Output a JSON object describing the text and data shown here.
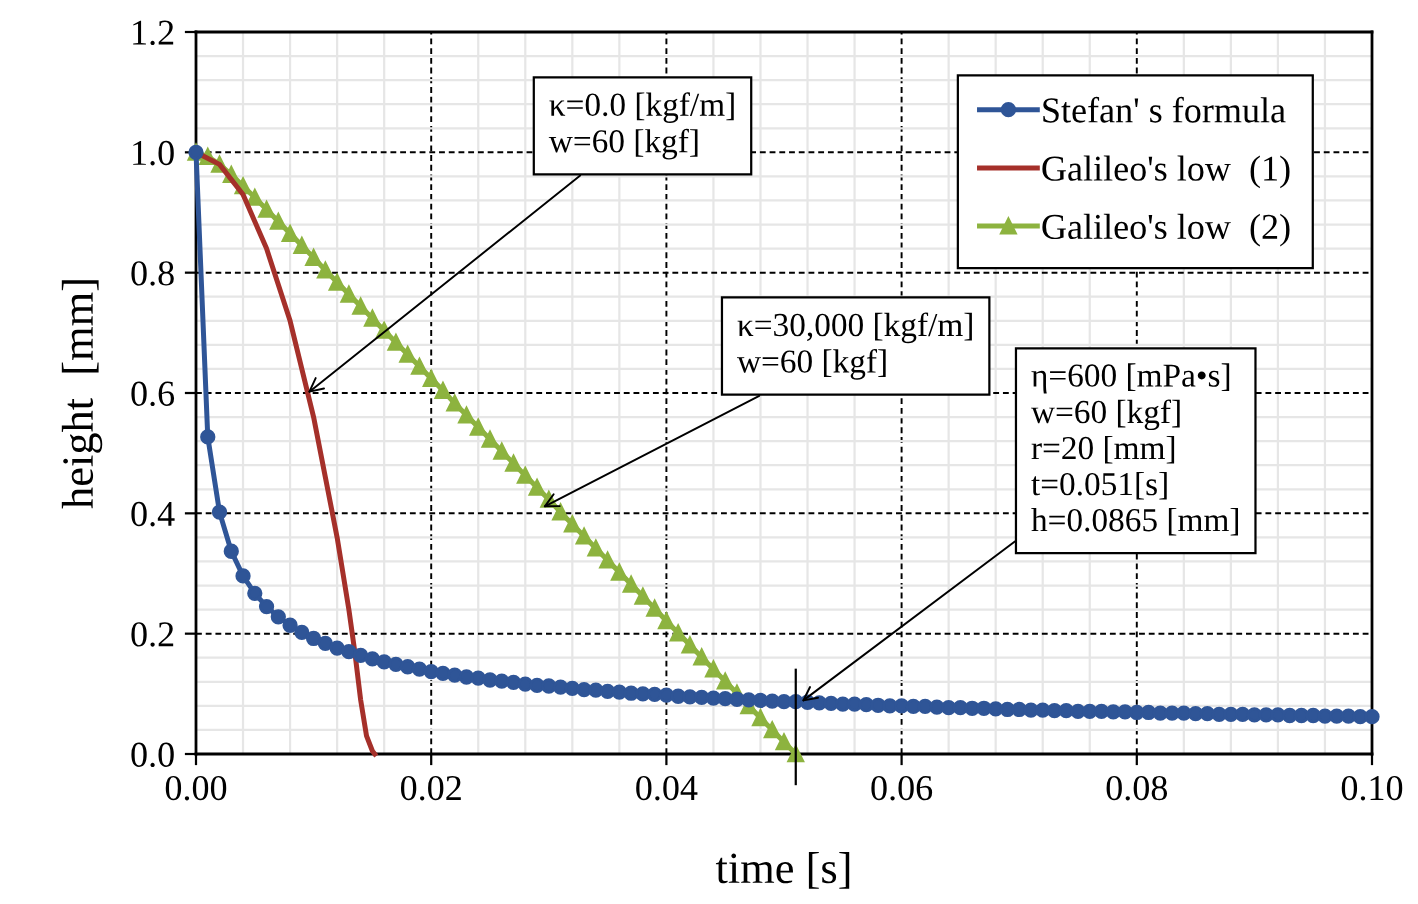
{
  "chart_data": {
    "type": "line",
    "xlabel": "time [s]",
    "ylabel": "height  [mm]",
    "xlim": [
      0,
      0.1
    ],
    "ylim": [
      0,
      1.2
    ],
    "xticks": [
      {
        "value": 0,
        "label": "0.00"
      },
      {
        "value": 0.02,
        "label": "0.02"
      },
      {
        "value": 0.04,
        "label": "0.04"
      },
      {
        "value": 0.06,
        "label": "0.06"
      },
      {
        "value": 0.08,
        "label": "0.08"
      },
      {
        "value": 0.1,
        "label": "0.10"
      }
    ],
    "yticks": [
      {
        "value": 0,
        "label": "0.0"
      },
      {
        "value": 0.2,
        "label": "0.2"
      },
      {
        "value": 0.4,
        "label": "0.4"
      },
      {
        "value": 0.6,
        "label": "0.6"
      },
      {
        "value": 0.8,
        "label": "0.8"
      },
      {
        "value": 1.0,
        "label": "1.0"
      },
      {
        "value": 1.2,
        "label": "1.2"
      }
    ],
    "grid": true,
    "legend": "top right",
    "series": [
      {
        "name": "Stefan' s formula",
        "color": "#2f5597",
        "marker": "circle",
        "x": [
          0,
          0.001,
          0.002,
          0.003,
          0.004,
          0.005,
          0.006,
          0.007,
          0.008,
          0.009,
          0.01,
          0.011,
          0.012,
          0.013,
          0.014,
          0.015,
          0.016,
          0.017,
          0.018,
          0.019,
          0.02,
          0.021,
          0.022,
          0.023,
          0.024,
          0.025,
          0.026,
          0.027,
          0.028,
          0.029,
          0.03,
          0.031,
          0.032,
          0.033,
          0.034,
          0.035,
          0.036,
          0.037,
          0.038,
          0.039,
          0.04,
          0.041,
          0.042,
          0.043,
          0.044,
          0.045,
          0.046,
          0.047,
          0.048,
          0.049,
          0.05,
          0.051,
          0.052,
          0.053,
          0.054,
          0.055,
          0.056,
          0.057,
          0.058,
          0.059,
          0.06,
          0.061,
          0.062,
          0.063,
          0.064,
          0.065,
          0.066,
          0.067,
          0.068,
          0.069,
          0.07,
          0.071,
          0.072,
          0.073,
          0.074,
          0.075,
          0.076,
          0.077,
          0.078,
          0.079,
          0.08,
          0.081,
          0.082,
          0.083,
          0.084,
          0.085,
          0.086,
          0.087,
          0.088,
          0.089,
          0.09,
          0.091,
          0.092,
          0.093,
          0.094,
          0.095,
          0.096,
          0.097,
          0.098,
          0.099,
          0.1
        ],
        "values": [
          1.0,
          0.527,
          0.402,
          0.337,
          0.296,
          0.267,
          0.245,
          0.228,
          0.214,
          0.202,
          0.192,
          0.184,
          0.176,
          0.17,
          0.164,
          0.158,
          0.153,
          0.149,
          0.145,
          0.141,
          0.137,
          0.134,
          0.131,
          0.128,
          0.126,
          0.123,
          0.121,
          0.119,
          0.116,
          0.114,
          0.113,
          0.111,
          0.109,
          0.107,
          0.106,
          0.104,
          0.103,
          0.101,
          0.1,
          0.099,
          0.098,
          0.096,
          0.095,
          0.094,
          0.093,
          0.092,
          0.091,
          0.09,
          0.089,
          0.088,
          0.087,
          0.087,
          0.086,
          0.085,
          0.084,
          0.083,
          0.083,
          0.082,
          0.081,
          0.08,
          0.08,
          0.079,
          0.079,
          0.078,
          0.077,
          0.077,
          0.076,
          0.076,
          0.075,
          0.074,
          0.074,
          0.073,
          0.073,
          0.072,
          0.072,
          0.071,
          0.071,
          0.071,
          0.07,
          0.07,
          0.069,
          0.069,
          0.068,
          0.068,
          0.068,
          0.067,
          0.067,
          0.066,
          0.066,
          0.066,
          0.065,
          0.065,
          0.065,
          0.064,
          0.064,
          0.064,
          0.063,
          0.063,
          0.063,
          0.062,
          0.062
        ]
      },
      {
        "name": "Galileo's low  (1)",
        "color": "#a5302a",
        "marker": "none",
        "x": [
          0,
          0.002,
          0.004,
          0.006,
          0.008,
          0.01,
          0.011,
          0.012,
          0.013,
          0.0135,
          0.014,
          0.0145,
          0.015,
          0.0152
        ],
        "values": [
          1.0,
          0.98,
          0.93,
          0.84,
          0.72,
          0.56,
          0.46,
          0.36,
          0.24,
          0.17,
          0.09,
          0.03,
          0.005,
          0
        ]
      },
      {
        "name": "Galileo's low  (2)",
        "color": "#8db33f",
        "marker": "triangle",
        "x": [
          0,
          0.001,
          0.002,
          0.003,
          0.004,
          0.005,
          0.006,
          0.007,
          0.008,
          0.009,
          0.01,
          0.011,
          0.012,
          0.013,
          0.014,
          0.015,
          0.016,
          0.017,
          0.018,
          0.019,
          0.02,
          0.021,
          0.022,
          0.023,
          0.024,
          0.025,
          0.026,
          0.027,
          0.028,
          0.029,
          0.03,
          0.031,
          0.032,
          0.033,
          0.034,
          0.035,
          0.036,
          0.037,
          0.038,
          0.039,
          0.04,
          0.041,
          0.042,
          0.043,
          0.044,
          0.045,
          0.046,
          0.047,
          0.048,
          0.049,
          0.05,
          0.051
        ],
        "values": [
          1.0,
          0.993,
          0.98,
          0.963,
          0.944,
          0.925,
          0.905,
          0.885,
          0.865,
          0.845,
          0.825,
          0.804,
          0.784,
          0.764,
          0.744,
          0.724,
          0.704,
          0.684,
          0.664,
          0.644,
          0.624,
          0.604,
          0.583,
          0.563,
          0.543,
          0.523,
          0.503,
          0.483,
          0.463,
          0.443,
          0.423,
          0.402,
          0.382,
          0.362,
          0.342,
          0.322,
          0.302,
          0.282,
          0.262,
          0.242,
          0.221,
          0.201,
          0.181,
          0.161,
          0.141,
          0.121,
          0.101,
          0.08,
          0.06,
          0.04,
          0.02,
          0
        ]
      }
    ],
    "ref_lines": [
      {
        "axis": "x",
        "value": 0.051,
        "color": "#000000"
      }
    ],
    "annotations": [
      {
        "text": "κ=0.0 [kgf/m]\nw=60 [kgf]",
        "x": 0.0095,
        "y": 0.6
      },
      {
        "text": "κ=30,000 [kgf/m]\nw=60 [kgf]",
        "x": 0.0295,
        "y": 0.41
      },
      {
        "text": "η=600 [mPa•s]\nw=60 [kgf]\nr=20 [mm]\nt=0.051[s]\nh=0.0865 [mm]",
        "x": 0.0515,
        "y": 0.087
      }
    ]
  }
}
